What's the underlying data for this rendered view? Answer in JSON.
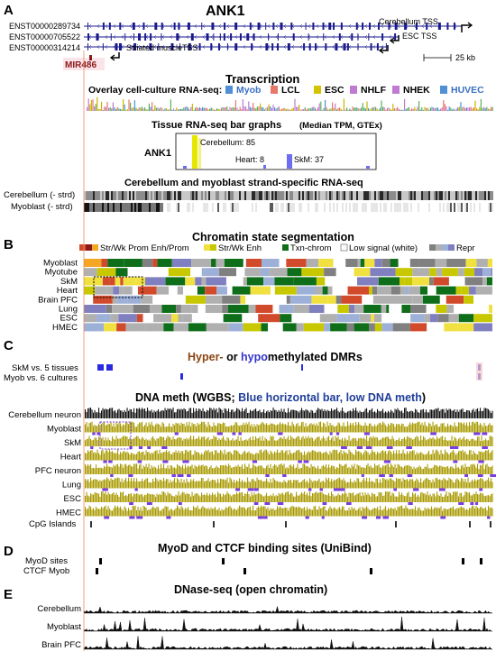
{
  "panels": {
    "a": {
      "letter": "A",
      "gene_title": "ANK1",
      "transcripts": [
        "ENST00000289734",
        "ENST00000705522",
        "ENST00000314214"
      ],
      "tss_labels": {
        "cerebellum": "Cerebellum TSS",
        "esc": "ESC TSS",
        "muscle": "Striated muscleTSS"
      },
      "mirna": "MIR486",
      "scale": "25 kb",
      "transcription_title": "Transcription",
      "overlay_label": "Overlay cell-culture RNA-seq:",
      "cell_cultures": [
        {
          "name": "Myob",
          "color": "#4f8fd6"
        },
        {
          "name": "LCL",
          "color": "#e8776b"
        },
        {
          "name": "ESC",
          "color": "#d4c400"
        },
        {
          "name": "NHLF",
          "color": "#c07ad0"
        },
        {
          "name": "NHEK",
          "color": "#c07ad0"
        },
        {
          "name": "HUVEC",
          "color": "#4f8fd6"
        }
      ],
      "tissue_title": "Tissue RNA-seq bar graphs",
      "tissue_subtitle": "(Median TPM, GTEx)",
      "bar_gene_label": "ANK1",
      "bar_labels": {
        "cerebellum": "Cerebellum: 85",
        "heart": "Heart: 8",
        "skm": "SkM: 37"
      },
      "strand_title": "Cerebellum and myoblast strand-specific RNA-seq",
      "strand_tracks": [
        "Cerebellum (- strd)",
        "Myoblast (- strd)"
      ]
    },
    "b": {
      "letter": "B",
      "title": "Chromatin state segmentation",
      "legend": [
        {
          "label": "Str/Wk Prom Enh/Prom",
          "colors": [
            "#d24a2c",
            "#8b1a1a",
            "#f5a623"
          ]
        },
        {
          "label": "Str/Wk Enh",
          "colors": [
            "#f0e040",
            "#c8c800"
          ]
        },
        {
          "label": "Txn-chrom",
          "colors": [
            "#0f6e1a"
          ]
        },
        {
          "label": "Low signal (white)",
          "colors": [
            "#ffffff"
          ]
        },
        {
          "label": "Repr",
          "colors": [
            "#808080",
            "#b0b0b0",
            "#9db0d8",
            "#8080c0"
          ]
        }
      ],
      "rows": [
        "Myoblast",
        "Myotube",
        "SkM",
        "Heart",
        "Brain PFC",
        "Lung",
        "ESC",
        "HMEC"
      ]
    },
    "c": {
      "letter": "C",
      "dmr_title_hyper": "Hyper-",
      "dmr_title_mid": " or ",
      "dmr_title_hypo": "hypo",
      "dmr_title_end": "methylated DMRs",
      "dmr_rows": [
        "SkM vs. 5 tissues",
        "Myob vs. 6 cultures"
      ],
      "meth_title_a": "DNA meth (WGBS; ",
      "meth_title_b": "Blue horizontal bar, low DNA meth",
      "meth_title_c": ")",
      "meth_rows": [
        "Cerebellum neuron",
        "Myoblast",
        "SkM",
        "Heart",
        "PFC neuron",
        "Lung",
        "ESC",
        "HMEC"
      ],
      "cpg_label": "CpG Islands"
    },
    "d": {
      "letter": "D",
      "title": "MyoD and CTCF binding sites (UniBind)",
      "rows": [
        "MyoD sites",
        "CTCF Myob"
      ]
    },
    "e": {
      "letter": "E",
      "title": "DNase-seq (open chromatin)",
      "rows": [
        "Cerebellum",
        "Myoblast",
        "Brain PFC"
      ]
    }
  }
}
